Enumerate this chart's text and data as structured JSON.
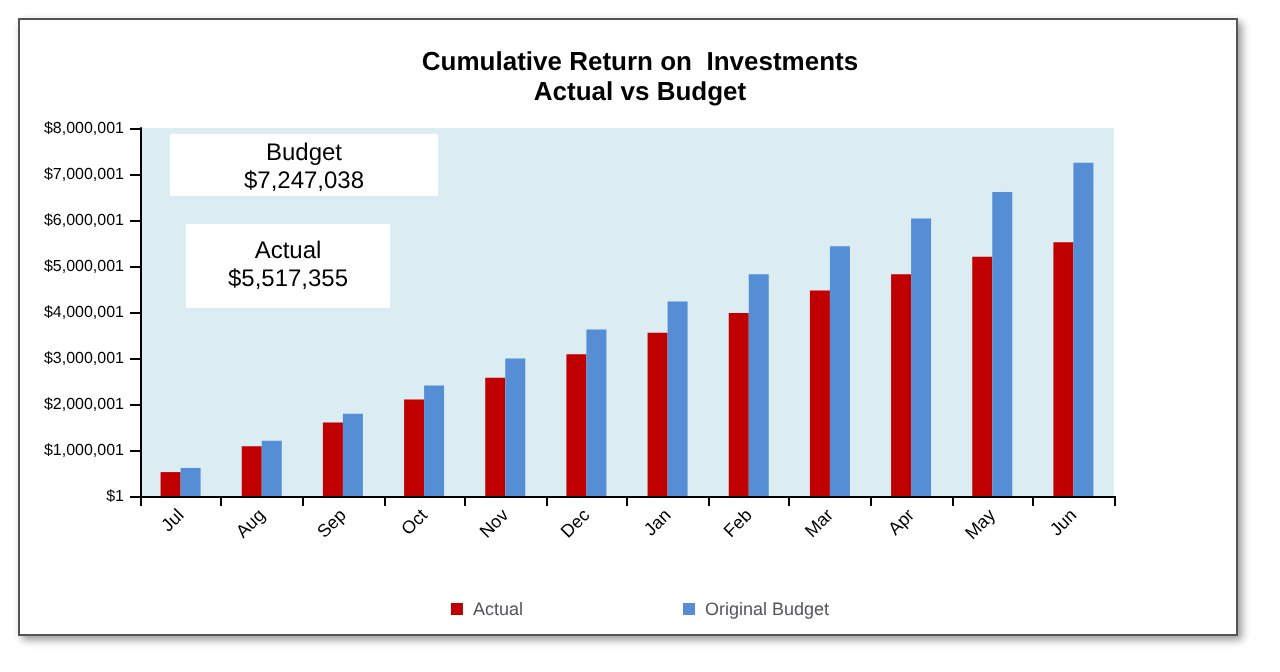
{
  "chart_data": {
    "type": "bar",
    "title": "Cumulative Return on  Investments\nActual vs Budget",
    "categories": [
      "Jul",
      "Aug",
      "Sep",
      "Oct",
      "Nov",
      "Dec",
      "Jan",
      "Feb",
      "Mar",
      "Apr",
      "May",
      "Jun"
    ],
    "series": [
      {
        "name": "Actual",
        "color": "#c00000",
        "values": [
          520000,
          1080000,
          1600000,
          2100000,
          2570000,
          3080000,
          3550000,
          3980000,
          4470000,
          4820000,
          5200000,
          5517355
        ]
      },
      {
        "name": "Original Budget",
        "color": "#558ed5",
        "values": [
          610000,
          1200000,
          1790000,
          2400000,
          2990000,
          3620000,
          4230000,
          4820000,
          5430000,
          6030000,
          6610000,
          7247038
        ]
      }
    ],
    "ylim": [
      1,
      8000001
    ],
    "yticks": [
      {
        "value": 1,
        "label": "$1"
      },
      {
        "value": 1000001,
        "label": "$1,000,001"
      },
      {
        "value": 2000001,
        "label": "$2,000,001"
      },
      {
        "value": 3000001,
        "label": "$3,000,001"
      },
      {
        "value": 4000001,
        "label": "$4,000,001"
      },
      {
        "value": 5000001,
        "label": "$5,000,001"
      },
      {
        "value": 6000001,
        "label": "$6,000,001"
      },
      {
        "value": 7000001,
        "label": "$7,000,001"
      },
      {
        "value": 8000001,
        "label": "$8,000,001"
      }
    ],
    "annotations": [
      "Budget\n$7,247,038",
      "Actual\n$5,517,355"
    ],
    "grid": false,
    "legend": "bottom"
  }
}
